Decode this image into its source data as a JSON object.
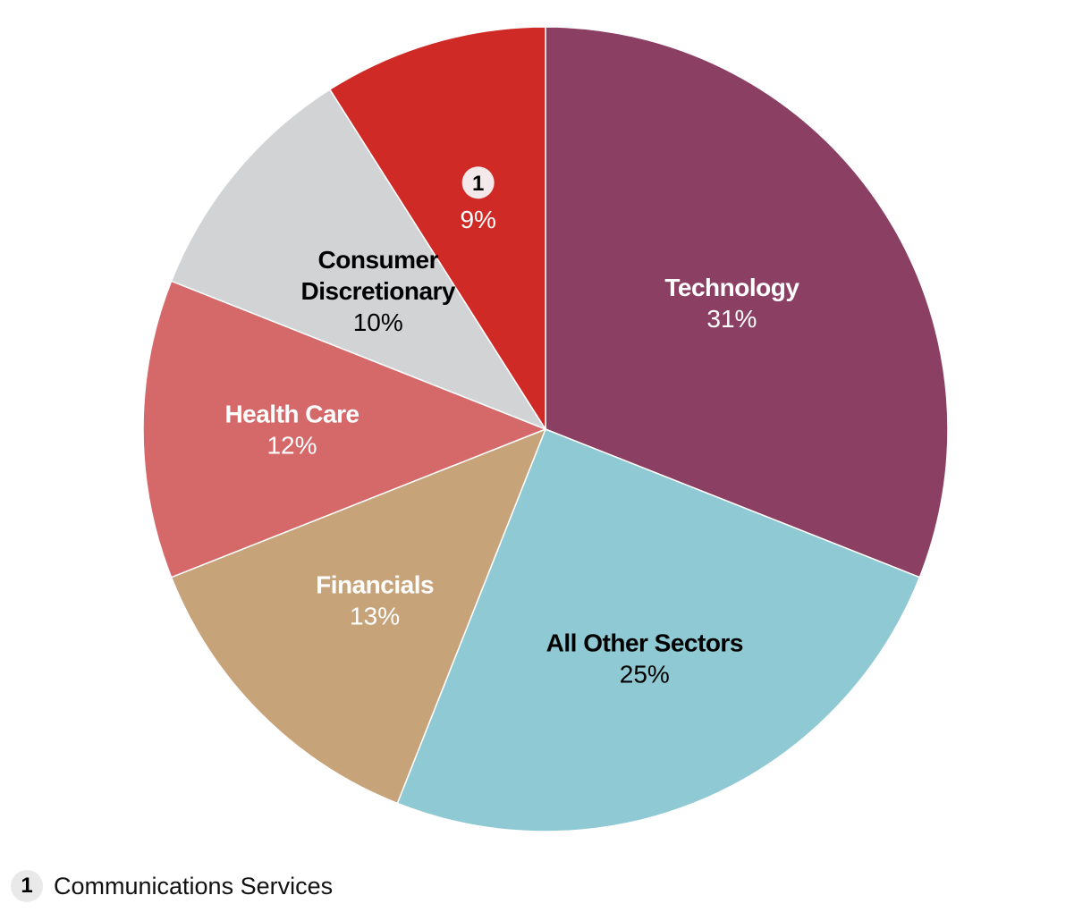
{
  "chart_data": {
    "type": "pie",
    "title": "",
    "slices": [
      {
        "name": "Technology",
        "label_lines": [
          "Technology"
        ],
        "value": 31,
        "value_label": "31%",
        "color": "#8b3f62",
        "text_color": "#ffffff"
      },
      {
        "name": "All Other Sectors",
        "label_lines": [
          "All Other Sectors"
        ],
        "value": 25,
        "value_label": "25%",
        "color": "#8fc9d3",
        "text_color": "#000000"
      },
      {
        "name": "Financials",
        "label_lines": [
          "Financials"
        ],
        "value": 13,
        "value_label": "13%",
        "color": "#c6a379",
        "text_color": "#ffffff"
      },
      {
        "name": "Health Care",
        "label_lines": [
          "Health Care"
        ],
        "value": 12,
        "value_label": "12%",
        "color": "#d56868",
        "text_color": "#ffffff"
      },
      {
        "name": "Consumer Discretionary",
        "label_lines": [
          "Consumer",
          "Discretionary"
        ],
        "value": 10,
        "value_label": "10%",
        "color": "#d2d3d5",
        "text_color": "#000000"
      },
      {
        "name": "Communications Services",
        "label_lines": [],
        "marker": "1",
        "value": 9,
        "value_label": "9%",
        "color": "#cf2a25",
        "text_color": "#ffffff"
      }
    ]
  },
  "footnote": {
    "marker": "1",
    "text": "Communications Services"
  }
}
